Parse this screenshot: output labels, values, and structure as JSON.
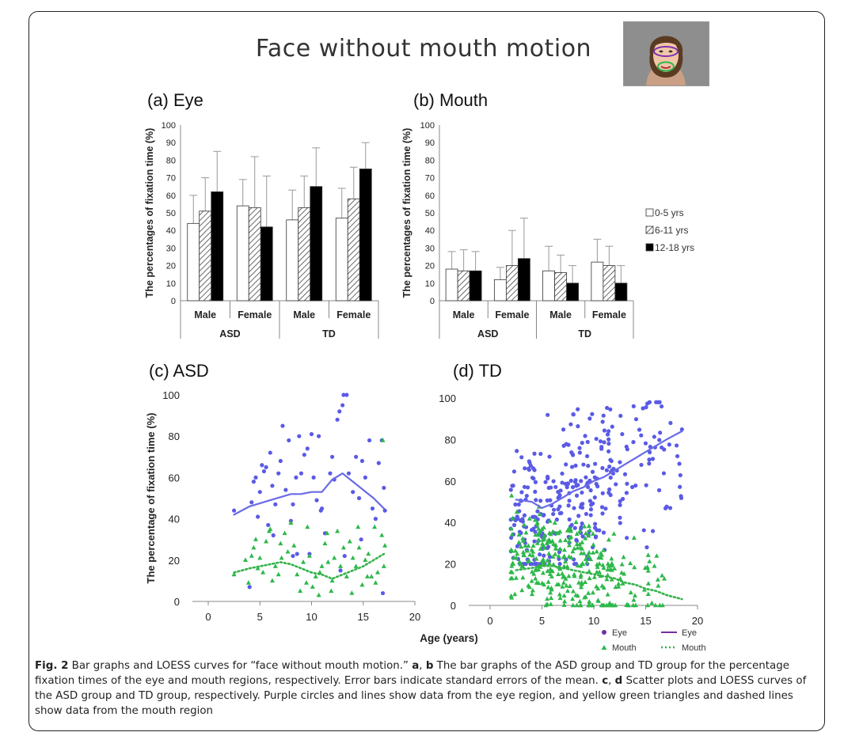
{
  "figure": {
    "main_title": "Face without mouth motion",
    "caption_label": "Fig. 2",
    "caption_text": "Bar graphs and LOESS curves for “face without mouth motion.” a, b The bar graphs of the ASD group and TD group for the percentage fixation times of the eye and mouth regions, respectively. Error bars indicate standard errors of the mean. c, d Scatter plots and LOESS curves of the ASD group and TD group, respectively. Purple circles and lines show data from the eye region, and yellow green triangles and dashed lines show data from the mouth region"
  },
  "colors": {
    "eye": "#5a5ae6",
    "eye_line": "#6a6ae8",
    "mouth": "#2db84a",
    "mouth_line": "#34b34a",
    "legend_eye": "#7030a0"
  },
  "chart_data": [
    {
      "id": "a",
      "type": "bar",
      "title": "(a) Eye",
      "ylabel": "The percentages of fixation time (%)",
      "ylim": [
        0,
        100
      ],
      "yticks": [
        0,
        10,
        20,
        30,
        40,
        50,
        60,
        70,
        80,
        90,
        100
      ],
      "groups": [
        "ASD",
        "TD"
      ],
      "categories": [
        "Male",
        "Female",
        "Male",
        "Female"
      ],
      "series": [
        {
          "name": "0-5 yrs",
          "values": [
            44,
            54,
            46,
            47
          ],
          "errors": [
            16,
            15,
            17,
            17
          ]
        },
        {
          "name": "6-11 yrs",
          "values": [
            51,
            53,
            53,
            58
          ],
          "errors": [
            19,
            29,
            18,
            18
          ]
        },
        {
          "name": "12-18 yrs",
          "values": [
            62,
            42,
            65,
            75
          ],
          "errors": [
            23,
            29,
            22,
            15
          ]
        }
      ]
    },
    {
      "id": "b",
      "type": "bar",
      "title": "(b) Mouth",
      "ylabel": "The percentages of fixation time (%)",
      "ylim": [
        0,
        100
      ],
      "yticks": [
        0,
        10,
        20,
        30,
        40,
        50,
        60,
        70,
        80,
        90,
        100
      ],
      "groups": [
        "ASD",
        "TD"
      ],
      "categories": [
        "Male",
        "Female",
        "Male",
        "Female"
      ],
      "series": [
        {
          "name": "0-5 yrs",
          "values": [
            18,
            12,
            17,
            22
          ],
          "errors": [
            10,
            7,
            14,
            13
          ]
        },
        {
          "name": "6-11 yrs",
          "values": [
            17,
            20,
            16,
            20
          ],
          "errors": [
            12,
            20,
            10,
            11
          ]
        },
        {
          "name": "12-18 yrs",
          "values": [
            17,
            24,
            10,
            10
          ],
          "errors": [
            11,
            23,
            10,
            10
          ]
        }
      ],
      "legend": [
        "0-5 yrs",
        "6-11 yrs",
        "12-18 yrs"
      ]
    },
    {
      "id": "c",
      "type": "scatter",
      "title": "(c) ASD",
      "ylabel": "The percentage of fixation time (%)",
      "xlim": [
        0,
        20
      ],
      "ylim": [
        0,
        100
      ],
      "xticks": [
        0,
        5,
        10,
        15,
        20
      ],
      "yticks": [
        0,
        20,
        40,
        60,
        80,
        100
      ],
      "series": [
        {
          "name": "Eye",
          "marker": "circle",
          "points": [
            [
              2.5,
              44
            ],
            [
              4.0,
              7
            ],
            [
              4.2,
              48
            ],
            [
              4.4,
              58
            ],
            [
              4.6,
              60
            ],
            [
              4.8,
              41
            ],
            [
              5.0,
              53
            ],
            [
              5.2,
              66
            ],
            [
              5.4,
              63
            ],
            [
              5.6,
              65
            ],
            [
              5.8,
              37
            ],
            [
              6.0,
              72
            ],
            [
              6.2,
              56
            ],
            [
              6.5,
              47
            ],
            [
              6.8,
              62
            ],
            [
              7.0,
              68
            ],
            [
              7.2,
              85
            ],
            [
              7.5,
              54
            ],
            [
              7.8,
              78
            ],
            [
              8.0,
              39
            ],
            [
              8.2,
              47
            ],
            [
              8.5,
              60
            ],
            [
              8.6,
              23
            ],
            [
              8.8,
              80
            ],
            [
              9.0,
              62
            ],
            [
              9.3,
              71
            ],
            [
              9.6,
              74
            ],
            [
              9.8,
              23
            ],
            [
              10.0,
              81
            ],
            [
              10.2,
              60
            ],
            [
              10.5,
              49
            ],
            [
              10.7,
              80
            ],
            [
              10.9,
              44
            ],
            [
              11.0,
              45
            ],
            [
              11.3,
              33
            ],
            [
              11.8,
              62
            ],
            [
              12.0,
              70
            ],
            [
              12.2,
              59
            ],
            [
              12.5,
              88
            ],
            [
              12.7,
              92
            ],
            [
              13.0,
              95
            ],
            [
              13.1,
              100
            ],
            [
              13.4,
              100
            ],
            [
              13.6,
              62
            ],
            [
              14.0,
              53
            ],
            [
              14.3,
              70
            ],
            [
              14.6,
              50
            ],
            [
              14.9,
              68
            ],
            [
              15.2,
              60
            ],
            [
              15.6,
              78
            ],
            [
              15.9,
              45
            ],
            [
              16.2,
              40
            ],
            [
              16.5,
              67
            ],
            [
              16.8,
              78
            ],
            [
              17.0,
              55
            ],
            [
              17.1,
              44
            ],
            [
              16.9,
              4
            ],
            [
              13.2,
              22
            ],
            [
              14.8,
              30
            ],
            [
              12.8,
              15
            ],
            [
              8.2,
              22
            ],
            [
              6.3,
              32
            ]
          ]
        },
        {
          "name": "Mouth",
          "marker": "triangle",
          "points": [
            [
              2.5,
              13
            ],
            [
              3.6,
              20
            ],
            [
              3.9,
              9
            ],
            [
              4.2,
              22
            ],
            [
              4.4,
              26
            ],
            [
              4.6,
              30
            ],
            [
              4.8,
              16
            ],
            [
              5.0,
              21
            ],
            [
              5.3,
              14
            ],
            [
              5.6,
              29
            ],
            [
              5.9,
              34
            ],
            [
              6.2,
              10
            ],
            [
              6.5,
              17
            ],
            [
              6.8,
              13
            ],
            [
              7.1,
              21
            ],
            [
              7.4,
              33
            ],
            [
              7.7,
              24
            ],
            [
              8.0,
              38
            ],
            [
              8.3,
              27
            ],
            [
              8.6,
              13
            ],
            [
              8.9,
              5
            ],
            [
              9.2,
              19
            ],
            [
              9.5,
              9
            ],
            [
              9.8,
              22
            ],
            [
              10.1,
              7
            ],
            [
              10.4,
              12
            ],
            [
              10.7,
              3
            ],
            [
              11.0,
              17
            ],
            [
              11.3,
              28
            ],
            [
              11.6,
              19
            ],
            [
              11.9,
              5
            ],
            [
              12.2,
              21
            ],
            [
              12.5,
              34
            ],
            [
              12.8,
              17
            ],
            [
              13.1,
              26
            ],
            [
              13.4,
              12
            ],
            [
              13.7,
              29
            ],
            [
              14.0,
              21
            ],
            [
              14.3,
              17
            ],
            [
              14.6,
              26
            ],
            [
              14.9,
              8
            ],
            [
              15.2,
              20
            ],
            [
              15.5,
              23
            ],
            [
              15.8,
              12
            ],
            [
              16.1,
              36
            ],
            [
              16.4,
              14
            ],
            [
              16.8,
              32
            ],
            [
              17.0,
              17
            ],
            [
              17.1,
              27
            ],
            [
              16.9,
              78
            ],
            [
              16.2,
              9
            ],
            [
              15.4,
              12
            ],
            [
              13.9,
              4
            ],
            [
              12.0,
              10
            ],
            [
              9.6,
              36
            ],
            [
              7.0,
              28
            ],
            [
              6.0,
              35
            ],
            [
              10.8,
              14
            ],
            [
              11.5,
              33
            ],
            [
              14.5,
              36
            ]
          ]
        }
      ],
      "loess": [
        {
          "name": "Eye",
          "style": "solid",
          "x": [
            2.5,
            4,
            6,
            8,
            9,
            10,
            11,
            12,
            13,
            14,
            15,
            16,
            17
          ],
          "y": [
            42,
            46,
            49,
            52,
            52,
            53,
            53,
            59,
            62,
            58,
            54,
            50,
            45
          ]
        },
        {
          "name": "Mouth",
          "style": "dotted",
          "x": [
            2.5,
            4,
            5,
            6,
            7,
            8,
            9,
            10,
            11,
            12,
            13,
            14,
            15,
            16,
            17
          ],
          "y": [
            14,
            16,
            17,
            18,
            19,
            18,
            16,
            14,
            13,
            11,
            13,
            15,
            17,
            20,
            23
          ]
        }
      ]
    },
    {
      "id": "d",
      "type": "scatter",
      "title": "(d) TD",
      "xlim": [
        0,
        20
      ],
      "ylim": [
        0,
        100
      ],
      "xticks": [
        0,
        5,
        10,
        15,
        20
      ],
      "yticks": [
        0,
        20,
        40,
        60,
        80,
        100
      ],
      "xlabel": "Age (years)",
      "legend": [
        "Eye",
        "Eye",
        "Mouth",
        "Mouth"
      ],
      "series": [
        {
          "name": "Eye",
          "marker": "circle",
          "points": "generated-dense",
          "count": 330,
          "xrange": [
            2,
            18.5
          ],
          "yrange": [
            20,
            98
          ]
        },
        {
          "name": "Mouth",
          "marker": "triangle",
          "points": "generated-dense",
          "count": 330,
          "xrange": [
            2,
            17
          ],
          "yrange": [
            0,
            55
          ]
        }
      ],
      "loess": [
        {
          "name": "Eye",
          "style": "solid",
          "x": [
            2.5,
            4,
            5,
            6,
            7,
            8,
            9,
            10,
            11,
            12,
            13,
            14,
            15,
            16,
            17,
            18.5
          ],
          "y": [
            51,
            50,
            47,
            49,
            52,
            55,
            57,
            60,
            62,
            65,
            68,
            71,
            74,
            77,
            80,
            84
          ]
        },
        {
          "name": "Mouth",
          "style": "dotted",
          "x": [
            2.5,
            4,
            5,
            6,
            7,
            8,
            9,
            10,
            11,
            12,
            13,
            14,
            15,
            16,
            17,
            18.5
          ],
          "y": [
            17,
            18,
            19,
            19,
            18,
            17,
            16,
            15,
            14,
            13,
            11,
            10,
            8,
            7,
            5,
            3
          ]
        }
      ]
    }
  ]
}
